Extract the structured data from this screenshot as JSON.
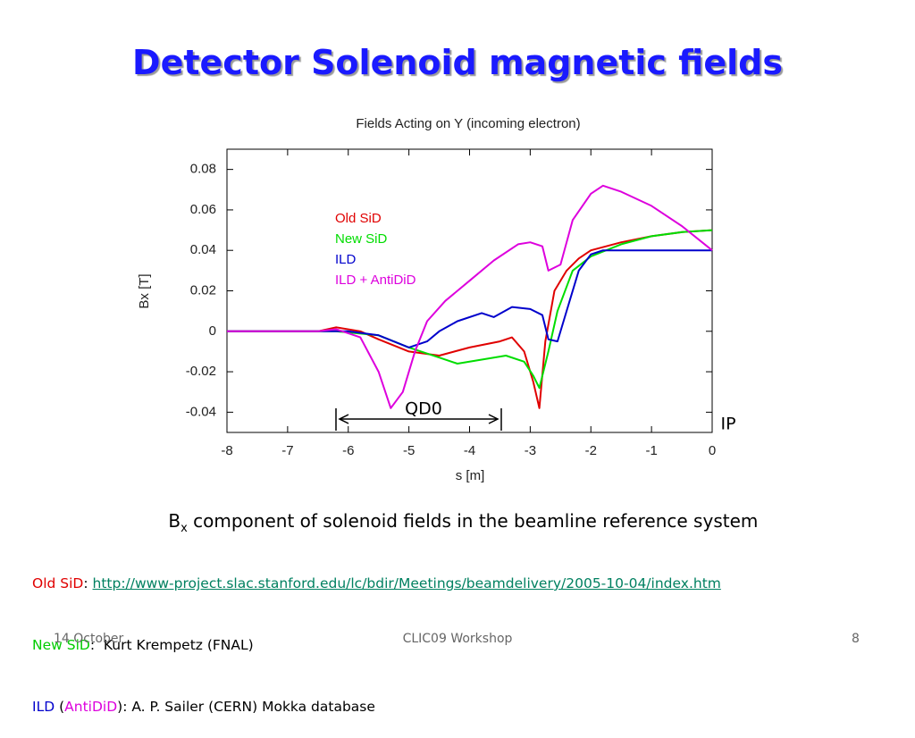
{
  "slide": {
    "title": "Detector Solenoid magnetic fields",
    "caption": {
      "base": "B",
      "sub": "x",
      "rest": " component of solenoid fields in the beamline reference system"
    },
    "refs": [
      [
        "Old SiD",
        ": ",
        "http://www-project.slac.stanford.edu/lc/bdir/Meetings/beamdelivery/2005-10-04/index.htm"
      ],
      [
        "New SiD",
        ":  Kurt Krempetz (FNAL)"
      ],
      [
        "ILD",
        " (",
        "AntiDiD",
        "): A. P. Sailer (CERN) Mokka database"
      ]
    ],
    "footer": {
      "date": "14 October",
      "event": "CLIC09 Workshop",
      "page": "8"
    }
  },
  "chart_data": {
    "type": "line",
    "title": "Fields Acting on Y (incoming electron)",
    "x_label": "s [m]",
    "y_label": "Bx [T]",
    "annotations": [
      "QD0",
      "IP"
    ],
    "xlim": [
      -8,
      0
    ],
    "xticks": [
      -8,
      -7,
      -6,
      -5,
      -4,
      -3,
      -2,
      -1,
      0
    ],
    "ylim": [
      -0.05,
      0.09
    ],
    "yticks": [
      -0.04,
      -0.02,
      0,
      0.02,
      0.04,
      0.06,
      0.08
    ],
    "series": [
      {
        "name": "Old SiD",
        "color": "#e00000",
        "x": [
          -8,
          -6.5,
          -6.2,
          -5.8,
          -5.5,
          -5,
          -4.5,
          -4,
          -3.5,
          -3.3,
          -3.1,
          -2.95,
          -2.85,
          -2.75,
          -2.6,
          -2.4,
          -2.2,
          -2,
          -1.5,
          -1,
          -0.5,
          0
        ],
        "values": [
          0,
          0,
          0.002,
          0,
          -0.004,
          -0.01,
          -0.012,
          -0.008,
          -0.005,
          -0.003,
          -0.01,
          -0.025,
          -0.038,
          -0.005,
          0.02,
          0.03,
          0.036,
          0.04,
          0.044,
          0.047,
          0.049,
          0.05
        ]
      },
      {
        "name": "New SiD",
        "color": "#00dd00",
        "x": [
          -8,
          -6.2,
          -5.5,
          -5,
          -4.5,
          -4.2,
          -3.8,
          -3.4,
          -3.1,
          -2.95,
          -2.85,
          -2.7,
          -2.55,
          -2.3,
          -2,
          -1.5,
          -1,
          -0.5,
          0
        ],
        "values": [
          0,
          0,
          -0.002,
          -0.008,
          -0.013,
          -0.016,
          -0.014,
          -0.012,
          -0.015,
          -0.022,
          -0.028,
          -0.01,
          0.01,
          0.03,
          0.037,
          0.043,
          0.047,
          0.049,
          0.05
        ]
      },
      {
        "name": "ILD",
        "color": "#0000cc",
        "x": [
          -8,
          -6,
          -5.5,
          -5,
          -4.7,
          -4.5,
          -4.2,
          -3.8,
          -3.6,
          -3.3,
          -3,
          -2.8,
          -2.7,
          -2.55,
          -2.4,
          -2.2,
          -2,
          -1.8,
          0
        ],
        "values": [
          0,
          0,
          -0.002,
          -0.008,
          -0.005,
          0,
          0.005,
          0.009,
          0.007,
          0.012,
          0.011,
          0.008,
          -0.004,
          -0.005,
          0.01,
          0.03,
          0.038,
          0.04,
          0.04
        ]
      },
      {
        "name": "ILD + AntiDiD",
        "color": "#dd00dd",
        "x": [
          -8,
          -6.5,
          -6.2,
          -5.8,
          -5.5,
          -5.3,
          -5.1,
          -4.9,
          -4.7,
          -4.4,
          -4,
          -3.6,
          -3.2,
          -3,
          -2.8,
          -2.7,
          -2.5,
          -2.3,
          -2,
          -1.8,
          -1.5,
          -1,
          -0.5,
          0
        ],
        "values": [
          0,
          0,
          0.001,
          -0.003,
          -0.02,
          -0.038,
          -0.03,
          -0.01,
          0.005,
          0.015,
          0.025,
          0.035,
          0.043,
          0.044,
          0.042,
          0.03,
          0.033,
          0.055,
          0.068,
          0.072,
          0.069,
          0.062,
          0.052,
          0.04
        ]
      }
    ]
  }
}
